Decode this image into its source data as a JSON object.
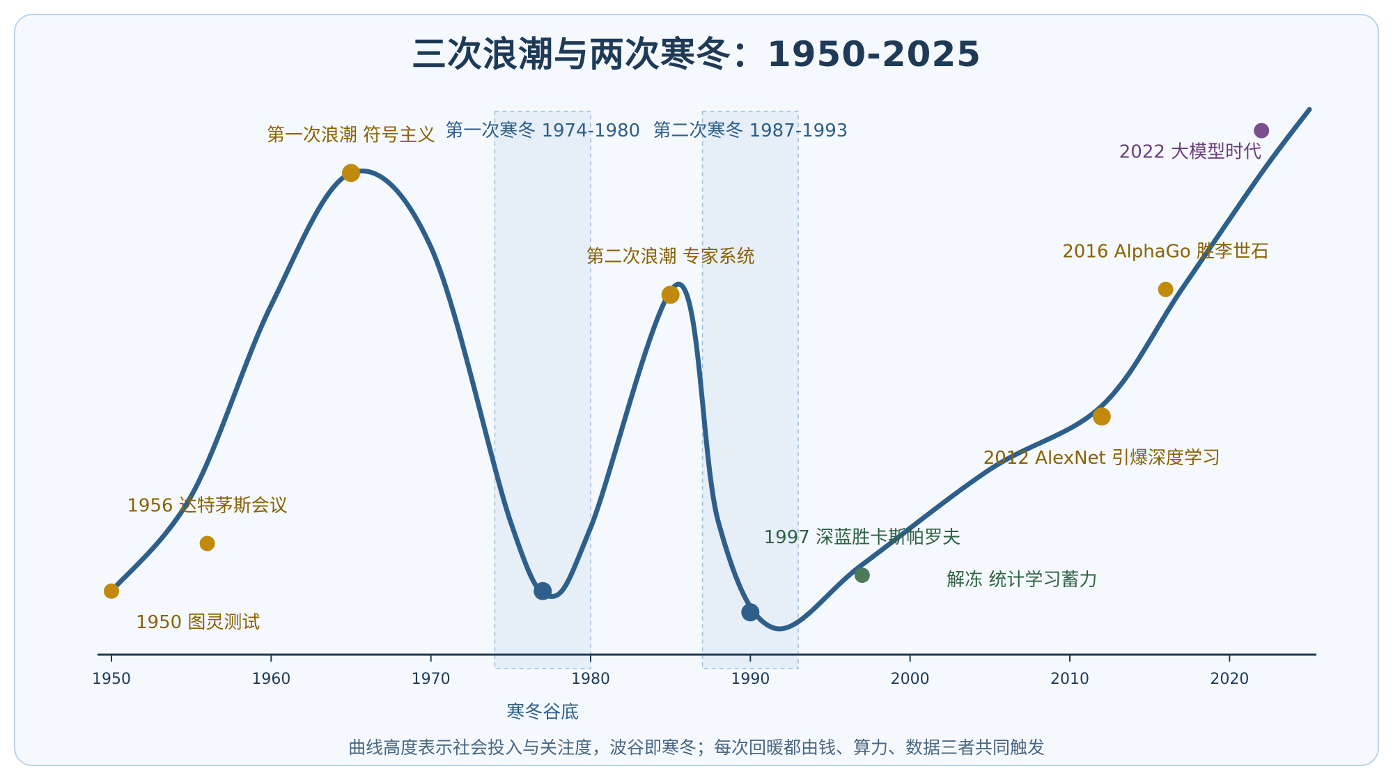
{
  "title": "三次浪潮与两次寒冬：1950-2025",
  "colors": {
    "curve": "#2e5f8a",
    "gold": "#c28a0c",
    "gold_text": "#8a6205",
    "green": "#4e7a5c",
    "green_text": "#2f6145",
    "purple": "#7b4f8f",
    "purple_text": "#6b3f7f",
    "winter_fill": "#e6eef8",
    "winter_text": "#2e5f8a",
    "axis": "#1f3a57"
  },
  "chart_data": {
    "type": "line",
    "title": "三次浪潮与两次寒冬：1950-2025",
    "xlabel": "",
    "ylabel": "",
    "xlim": [
      1950,
      2025
    ],
    "x_ticks": [
      1950,
      1960,
      1970,
      1980,
      1990,
      2000,
      2010,
      2020
    ],
    "ylim": [
      0,
      100
    ],
    "grid": false,
    "series": [
      {
        "x": [
          1950,
          1955,
          1960,
          1965,
          1970,
          1975,
          1977.5,
          1980,
          1985.5,
          1988,
          1991.5,
          1997,
          2005,
          2012,
          2017,
          2022,
          2025
        ],
        "y": [
          12,
          30,
          66,
          91,
          77,
          25,
          11,
          24,
          70,
          25,
          5,
          17,
          35,
          47,
          69,
          91,
          103
        ]
      }
    ],
    "winters": [
      {
        "label": "第一次寒冬 1974-1980",
        "start": 1974,
        "end": 1980
      },
      {
        "label": "第二次寒冬 1987-1993",
        "start": 1987,
        "end": 1993
      }
    ],
    "events": [
      {
        "x": 1950,
        "y": 12,
        "label": "1950 图灵测试",
        "kind": "gold",
        "size": "small",
        "pos": "below-right"
      },
      {
        "x": 1956,
        "y": 21,
        "label": "1956 达特茅斯会议",
        "kind": "gold",
        "size": "small",
        "pos": "above"
      },
      {
        "x": 1965,
        "y": 91,
        "label": "第一次浪潮 符号主义",
        "kind": "gold",
        "size": "large",
        "pos": "above"
      },
      {
        "x": 1977,
        "y": 12,
        "label": "",
        "kind": "blue",
        "size": "large",
        "pos": "none"
      },
      {
        "x": 1985,
        "y": 68,
        "label": "第二次浪潮 专家系统",
        "kind": "gold",
        "size": "large",
        "pos": "above"
      },
      {
        "x": 1990,
        "y": 8,
        "label": "",
        "kind": "blue",
        "size": "large",
        "pos": "none"
      },
      {
        "x": 1997,
        "y": 15,
        "label": "1997 深蓝胜卡斯帕罗夫",
        "kind": "green",
        "size": "small",
        "pos": "above"
      },
      {
        "x": 2012,
        "y": 45,
        "label": "2012 AlexNet 引爆深度学习",
        "kind": "gold",
        "size": "large",
        "pos": "below"
      },
      {
        "x": 2016,
        "y": 69,
        "label": "2016 AlphaGo 胜李世石",
        "kind": "gold",
        "size": "small",
        "pos": "above"
      },
      {
        "x": 2022,
        "y": 99,
        "label": "2022 大模型时代",
        "kind": "purple",
        "size": "small",
        "pos": "below-left"
      }
    ],
    "annotations": [
      {
        "x": 1977,
        "y": -12,
        "label": "寒冬谷底",
        "kind": "winter"
      },
      {
        "x": 2007,
        "y": 13,
        "label": "解冻 统计学习蓄力",
        "kind": "green"
      }
    ]
  },
  "footnote": "曲线高度表示社会投入与关注度，波谷即寒冬；每次回暖都由钱、算力、数据三者共同触发"
}
